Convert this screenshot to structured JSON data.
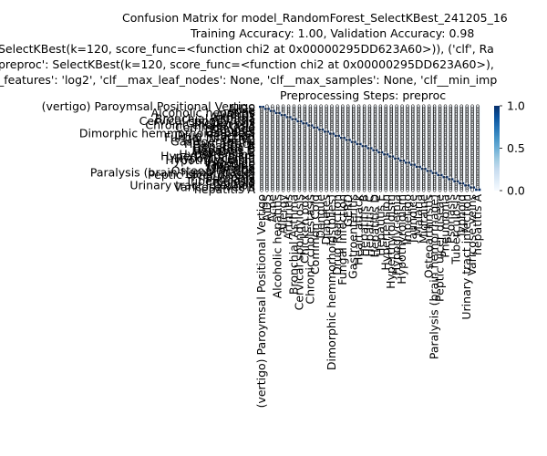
{
  "chart_data": {
    "type": "heatmap",
    "title_lines": [
      "Confusion Matrix for model_RandomForest_SelectKBest_241205_16",
      "Training Accuracy: 1.00, Validation Accuracy: 0.98",
      "SelectKBest(k=120, score_func=<function chi2 at 0x00000295DD623A60>)), ('clf', Ra",
      "preproc': SelectKBest(k=120, score_func=<function chi2 at 0x00000295DD623A60>),",
      "_features': 'log2', 'clf__max_leaf_nodes': None, 'clf__max_samples': None, 'clf__min_imp",
      "Preprocessing Steps: preproc"
    ],
    "classes": [
      "(vertigo) Paroymsal  Positional Vertigo",
      "AIDS",
      "Acne",
      "Alcoholic hepatitis",
      "Allergy",
      "Arthritis",
      "Bronchial Asthma",
      "Cervical spondylosis",
      "Chicken pox",
      "Chronic cholestasis",
      "Common Cold",
      "Dengue",
      "Diabetes",
      "Dimorphic hemmorhoids(piles)",
      "Drug Reaction",
      "Fungal infection",
      "GERD",
      "Gastroenteritis",
      "Heart attack",
      "Hepatitis B",
      "Hepatitis C",
      "Hepatitis D",
      "Hepatitis E",
      "Hypertension",
      "Hyperthyroidism",
      "Hypoglycemia",
      "Hypothyroidism",
      "Impetigo",
      "Jaundice",
      "Malaria",
      "Migraine",
      "Osteoarthristis",
      "Paralysis (brain hemorrhage)",
      "Peptic ulcer diseae",
      "Pneumonia",
      "Psoriasis",
      "Tuberculosis",
      "Typhoid",
      "Urinary tract infection",
      "Varicose veins",
      "hepatitis A"
    ],
    "values_note": "normalized rows; diagonal = 1",
    "diagonal_value": 1.0,
    "off_diagonal_value": 0.0,
    "colorbar": {
      "min": 0.0,
      "max": 1.0,
      "ticks": [
        "0.0",
        "0.5",
        "1.0"
      ]
    },
    "cmap": [
      "#f7fbff",
      "#deebf7",
      "#c6dbef",
      "#9ecae1",
      "#6baed6",
      "#4292c6",
      "#2171b5",
      "#08519c",
      "#08306b"
    ],
    "annotation_color": "#262626"
  }
}
